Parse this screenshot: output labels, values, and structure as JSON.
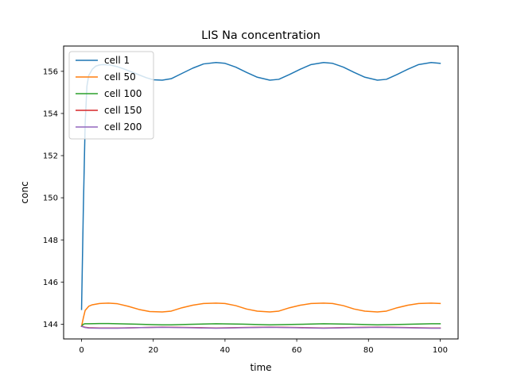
{
  "chart_data": {
    "type": "line",
    "title": "LIS Na concentration",
    "xlabel": "time",
    "ylabel": "conc",
    "xlim": [
      -5,
      105
    ],
    "ylim": [
      143.3,
      157.2
    ],
    "xticks": [
      0,
      20,
      40,
      60,
      80,
      100
    ],
    "yticks": [
      144,
      146,
      148,
      150,
      152,
      154,
      156
    ],
    "grid": false,
    "legend_position": "top-left",
    "series": [
      {
        "name": "cell 1",
        "color": "#1f77b4",
        "x": [
          0,
          0.5,
          1,
          1.5,
          2,
          3,
          4,
          5,
          6,
          8,
          10,
          12,
          15,
          18,
          20,
          22.5,
          25,
          28,
          31,
          34,
          37.5,
          40,
          43,
          46,
          49,
          52.5,
          55,
          58,
          61,
          64,
          67.5,
          70,
          73,
          76,
          79,
          82.5,
          85,
          88,
          91,
          94,
          97.5,
          100
        ],
        "y": [
          144.7,
          149.5,
          153.5,
          155.3,
          155.8,
          156.1,
          156.25,
          156.3,
          156.32,
          156.3,
          156.22,
          156.1,
          155.9,
          155.7,
          155.6,
          155.58,
          155.65,
          155.9,
          156.15,
          156.35,
          156.42,
          156.38,
          156.2,
          155.95,
          155.72,
          155.58,
          155.62,
          155.85,
          156.1,
          156.32,
          156.42,
          156.38,
          156.2,
          155.95,
          155.72,
          155.58,
          155.62,
          155.85,
          156.1,
          156.32,
          156.42,
          156.38
        ]
      },
      {
        "name": "cell 50",
        "color": "#ff7f0e",
        "x": [
          0,
          0.5,
          1,
          2,
          3,
          5,
          7.5,
          10,
          13,
          16,
          19,
          22.5,
          25,
          28,
          31,
          34,
          37.5,
          40,
          43,
          46,
          49,
          52.5,
          55,
          58,
          61,
          64,
          67.5,
          70,
          73,
          76,
          79,
          82.5,
          85,
          88,
          91,
          94,
          97.5,
          100
        ],
        "y": [
          143.9,
          144.3,
          144.65,
          144.85,
          144.92,
          144.98,
          145.0,
          144.97,
          144.85,
          144.7,
          144.6,
          144.58,
          144.62,
          144.78,
          144.9,
          144.98,
          145.0,
          144.98,
          144.88,
          144.72,
          144.62,
          144.58,
          144.62,
          144.78,
          144.9,
          144.98,
          145.0,
          144.98,
          144.88,
          144.72,
          144.62,
          144.58,
          144.62,
          144.78,
          144.9,
          144.98,
          145.0,
          144.98
        ]
      },
      {
        "name": "cell 100",
        "color": "#2ca02c",
        "x": [
          0,
          0.5,
          1,
          2,
          5,
          7.5,
          10,
          15,
          20,
          22.5,
          25,
          30,
          37.5,
          45,
          52.5,
          60,
          67.5,
          75,
          82.5,
          90,
          97.5,
          100
        ],
        "y": [
          143.9,
          144.0,
          144.02,
          144.02,
          144.03,
          144.03,
          144.02,
          144.0,
          143.98,
          143.97,
          143.97,
          143.99,
          144.02,
          144.0,
          143.97,
          143.99,
          144.02,
          144.0,
          143.97,
          143.99,
          144.02,
          144.02
        ]
      },
      {
        "name": "cell 150",
        "color": "#d62728",
        "x": [
          0,
          0.5,
          1,
          2,
          5,
          7.5,
          10,
          15,
          22.5,
          30,
          37.5,
          45,
          52.5,
          60,
          67.5,
          75,
          82.5,
          90,
          97.5,
          100
        ],
        "y": [
          143.9,
          143.88,
          143.85,
          143.83,
          143.82,
          143.82,
          143.82,
          143.83,
          143.86,
          143.84,
          143.82,
          143.84,
          143.86,
          143.84,
          143.82,
          143.84,
          143.86,
          143.84,
          143.82,
          143.82
        ]
      },
      {
        "name": "cell 200",
        "color": "#9467bd",
        "x": [
          0,
          0.5,
          1,
          2,
          5,
          7.5,
          10,
          15,
          22.5,
          30,
          37.5,
          45,
          52.5,
          60,
          67.5,
          75,
          82.5,
          90,
          97.5,
          100
        ],
        "y": [
          143.9,
          143.87,
          143.84,
          143.82,
          143.81,
          143.81,
          143.81,
          143.83,
          143.85,
          143.83,
          143.81,
          143.83,
          143.85,
          143.83,
          143.81,
          143.83,
          143.85,
          143.83,
          143.81,
          143.81
        ]
      }
    ]
  }
}
